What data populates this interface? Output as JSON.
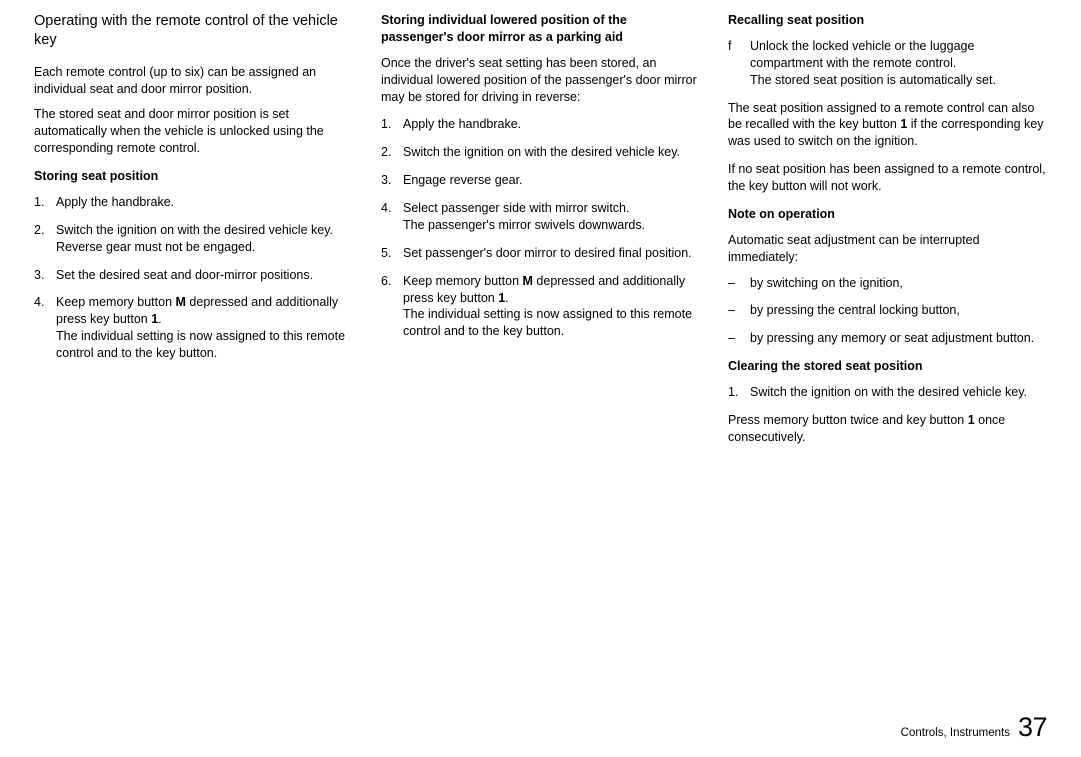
{
  "col1": {
    "heading": "Operating with the remote control of the vehicle key",
    "intro1": "Each remote control (up to six) can be assigned an individual seat and door mirror position.",
    "intro2": "The stored seat and door mirror position is set automatically when the vehicle is unlocked using the corresponding remote control.",
    "sub_heading": "Storing seat position",
    "steps": [
      {
        "t": "Apply the handbrake."
      },
      {
        "t": "Switch the ignition on with the desired vehicle key.",
        "extra": "Reverse gear must not be engaged."
      },
      {
        "t": "Set the desired seat and door-mirror positions."
      },
      {
        "t_parts": [
          "Keep memory button ",
          "M",
          " depressed and additionally press key button ",
          "1",
          "."
        ],
        "extra": "The individual setting is now assigned to this remote control and to the key button."
      }
    ]
  },
  "col2": {
    "heading": "Storing individual lowered position of the passenger's door mirror as a parking aid",
    "intro": "Once the driver's seat setting has been stored, an individual lowered position of the passenger's door mirror may be stored for driving in reverse:",
    "steps": [
      {
        "t": "Apply the handbrake."
      },
      {
        "t": "Switch the ignition on with the desired vehicle key."
      },
      {
        "t": "Engage reverse gear."
      },
      {
        "t": "Select passenger side with mirror switch.",
        "extra": "The passenger's mirror swivels downwards."
      },
      {
        "t": "Set passenger's door mirror to desired final position."
      },
      {
        "t_parts": [
          "Keep memory button ",
          "M",
          " depressed and additionally press key button ",
          "1",
          "."
        ],
        "extra": "The individual setting is now assigned to this remote control and to the key button."
      }
    ]
  },
  "col3": {
    "heading_recall": "Recalling seat position",
    "f_line1": "Unlock the locked vehicle or the luggage compartment with the remote control.",
    "f_line2": "The stored seat position is automatically set.",
    "p1_parts": [
      "The seat position assigned to a remote control can also be recalled with the key button ",
      "1",
      " if the corresponding key was used to switch on the ignition."
    ],
    "p2": "If no seat position has been assigned to a remote control, the key button will not work.",
    "heading_note": "Note on operation",
    "note_p": "Automatic seat adjustment can be interrupted immediately:",
    "note_items": [
      "by switching on the ignition,",
      "by pressing the central locking button,",
      "by pressing any memory or seat adjustment button."
    ],
    "heading_clear": "Clearing the stored seat position",
    "clear_step": "Switch the ignition on with the desired vehicle key.",
    "clear_p_parts": [
      "Press memory button twice and key button ",
      "1",
      " once consecutively."
    ]
  },
  "footer": {
    "label": "Controls, Instruments",
    "page": "37"
  }
}
